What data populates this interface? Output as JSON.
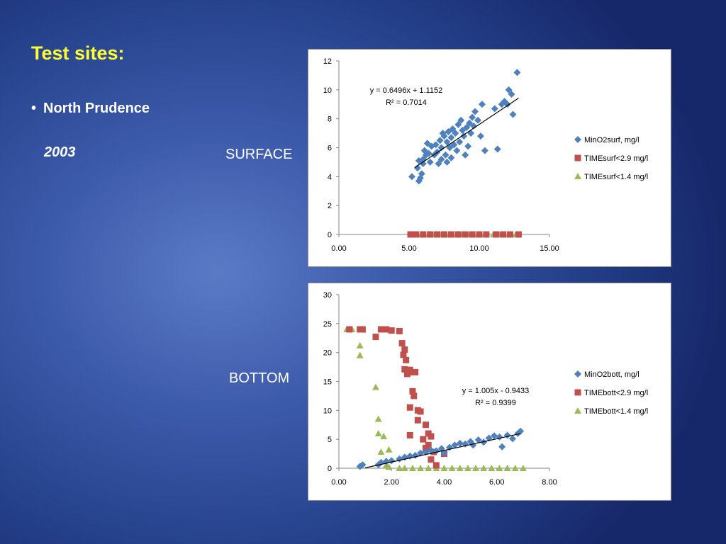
{
  "slide": {
    "title": "Test sites:",
    "bullet": "North Prudence",
    "year": "2003",
    "surface_label": "SURFACE",
    "bottom_label": "BOTTOM"
  },
  "chart_data": [
    {
      "type": "scatter",
      "title": "",
      "xlabel": "",
      "ylabel": "",
      "xlim": [
        0,
        15
      ],
      "ylim": [
        0,
        12
      ],
      "x_ticks": [
        "0.00",
        "5.00",
        "10.00",
        "15.00"
      ],
      "y_ticks": [
        "0",
        "2",
        "4",
        "6",
        "8",
        "10",
        "12"
      ],
      "grid": false,
      "legend": "right",
      "trendline": {
        "equation": "y = 0.6496x + 1.1152",
        "r2": "R² = 0.7014",
        "slope": 0.6496,
        "intercept": 1.1152,
        "x_range": [
          5.4,
          12.8
        ]
      },
      "series": [
        {
          "name": "MinO2surf, mg/l",
          "color": "#4f81bd",
          "marker": "diamond",
          "points": [
            [
              5.2,
              4.0
            ],
            [
              5.6,
              4.6
            ],
            [
              5.7,
              3.7
            ],
            [
              5.8,
              3.9
            ],
            [
              5.9,
              4.2
            ],
            [
              5.7,
              5.1
            ],
            [
              6.0,
              5.2
            ],
            [
              6.0,
              4.9
            ],
            [
              6.2,
              5.5
            ],
            [
              6.1,
              5.8
            ],
            [
              6.4,
              5.6
            ],
            [
              6.5,
              5.0
            ],
            [
              6.6,
              6.1
            ],
            [
              6.3,
              6.3
            ],
            [
              6.8,
              5.5
            ],
            [
              6.9,
              6.2
            ],
            [
              7.0,
              5.7
            ],
            [
              7.1,
              4.9
            ],
            [
              7.2,
              6.5
            ],
            [
              7.3,
              6.0
            ],
            [
              7.3,
              5.2
            ],
            [
              7.5,
              6.8
            ],
            [
              7.4,
              7.0
            ],
            [
              7.6,
              5.5
            ],
            [
              7.7,
              6.4
            ],
            [
              7.7,
              5.0
            ],
            [
              7.8,
              7.1
            ],
            [
              7.9,
              6.0
            ],
            [
              8.0,
              5.3
            ],
            [
              8.0,
              6.7
            ],
            [
              8.1,
              7.3
            ],
            [
              8.2,
              6.2
            ],
            [
              8.3,
              7.0
            ],
            [
              8.4,
              5.8
            ],
            [
              8.5,
              7.6
            ],
            [
              8.6,
              6.4
            ],
            [
              8.7,
              7.9
            ],
            [
              8.8,
              7.2
            ],
            [
              8.9,
              6.8
            ],
            [
              9.0,
              5.5
            ],
            [
              9.1,
              7.4
            ],
            [
              9.2,
              6.1
            ],
            [
              9.3,
              7.7
            ],
            [
              9.4,
              7.0
            ],
            [
              9.5,
              8.1
            ],
            [
              9.6,
              7.5
            ],
            [
              9.7,
              8.5
            ],
            [
              9.9,
              7.9
            ],
            [
              10.1,
              6.8
            ],
            [
              10.2,
              9.0
            ],
            [
              10.4,
              5.8
            ],
            [
              11.1,
              8.7
            ],
            [
              11.3,
              5.9
            ],
            [
              11.6,
              9.0
            ],
            [
              11.8,
              9.2
            ],
            [
              12.0,
              9.0
            ],
            [
              12.1,
              10.0
            ],
            [
              12.3,
              9.7
            ],
            [
              12.4,
              8.3
            ],
            [
              12.7,
              11.2
            ]
          ]
        },
        {
          "name": "TIMEsurf<2.9 mg/l",
          "color": "#c0504d",
          "marker": "square",
          "points": [
            [
              5.1,
              0
            ],
            [
              5.5,
              0
            ],
            [
              6.0,
              0
            ],
            [
              6.5,
              0
            ],
            [
              7.0,
              0
            ],
            [
              7.5,
              0
            ],
            [
              8.0,
              0
            ],
            [
              8.5,
              0
            ],
            [
              9.0,
              0
            ],
            [
              9.5,
              0
            ],
            [
              10.0,
              0
            ],
            [
              10.5,
              0
            ],
            [
              11.2,
              0
            ],
            [
              11.7,
              0
            ],
            [
              12.2,
              0
            ],
            [
              12.8,
              0
            ]
          ]
        },
        {
          "name": "TIMEsurf<1.4 mg/l",
          "color": "#9bbb59",
          "marker": "triangle",
          "points": [
            [
              5.2,
              0
            ],
            [
              5.6,
              0
            ],
            [
              6.0,
              0
            ],
            [
              6.4,
              0
            ],
            [
              6.8,
              0
            ],
            [
              7.2,
              0
            ],
            [
              7.6,
              0
            ],
            [
              8.0,
              0
            ],
            [
              8.4,
              0
            ],
            [
              8.8,
              0
            ],
            [
              9.2,
              0
            ],
            [
              9.6,
              0
            ],
            [
              10.0,
              0
            ],
            [
              10.4,
              0
            ],
            [
              11.0,
              0
            ],
            [
              11.4,
              0
            ],
            [
              11.8,
              0
            ],
            [
              12.2,
              0
            ],
            [
              12.6,
              0
            ]
          ]
        }
      ]
    },
    {
      "type": "scatter",
      "title": "",
      "xlabel": "",
      "ylabel": "",
      "xlim": [
        0,
        8
      ],
      "ylim": [
        0,
        30
      ],
      "x_ticks": [
        "0.00",
        "2.00",
        "4.00",
        "6.00",
        "8.00"
      ],
      "y_ticks": [
        "0",
        "5",
        "10",
        "15",
        "20",
        "25",
        "30"
      ],
      "grid": false,
      "legend": "right",
      "trendline": {
        "equation": "y = 1.005x - 0.9433",
        "r2": "R² = 0.9399",
        "slope": 1.005,
        "intercept": -0.9433,
        "x_range": [
          1.0,
          6.9
        ]
      },
      "series": [
        {
          "name": "MinO2bott, mg/l",
          "color": "#4f81bd",
          "marker": "diamond",
          "points": [
            [
              0.8,
              0.3
            ],
            [
              0.9,
              0.6
            ],
            [
              1.5,
              0.6
            ],
            [
              1.6,
              1.0
            ],
            [
              1.8,
              1.2
            ],
            [
              2.0,
              1.3
            ],
            [
              2.3,
              1.6
            ],
            [
              2.5,
              1.9
            ],
            [
              2.7,
              2.1
            ],
            [
              2.9,
              2.2
            ],
            [
              3.1,
              2.6
            ],
            [
              3.3,
              2.8
            ],
            [
              3.5,
              3.1
            ],
            [
              3.7,
              3.0
            ],
            [
              3.9,
              3.4
            ],
            [
              4.0,
              2.6
            ],
            [
              4.2,
              3.6
            ],
            [
              4.4,
              4.0
            ],
            [
              4.6,
              4.3
            ],
            [
              4.8,
              4.2
            ],
            [
              5.0,
              4.6
            ],
            [
              5.1,
              4.0
            ],
            [
              5.3,
              4.9
            ],
            [
              5.5,
              4.5
            ],
            [
              5.7,
              5.2
            ],
            [
              5.9,
              5.6
            ],
            [
              6.1,
              5.4
            ],
            [
              6.2,
              3.7
            ],
            [
              6.4,
              5.7
            ],
            [
              6.6,
              5.1
            ],
            [
              6.8,
              6.0
            ],
            [
              6.9,
              6.4
            ]
          ]
        },
        {
          "name": "TIMEbott<2.9 mg/l",
          "color": "#c0504d",
          "marker": "square",
          "points": [
            [
              0.4,
              24
            ],
            [
              0.8,
              24
            ],
            [
              0.9,
              24
            ],
            [
              1.4,
              22.7
            ],
            [
              1.6,
              24
            ],
            [
              1.8,
              24
            ],
            [
              2.0,
              23.8
            ],
            [
              2.3,
              23.7
            ],
            [
              2.4,
              21.6
            ],
            [
              2.5,
              20.5
            ],
            [
              2.45,
              19.6
            ],
            [
              2.55,
              18.7
            ],
            [
              2.5,
              17.1
            ],
            [
              2.6,
              16.3
            ],
            [
              2.7,
              17.0
            ],
            [
              2.75,
              16.6
            ],
            [
              2.9,
              16.6
            ],
            [
              2.8,
              13.3
            ],
            [
              2.85,
              12.5
            ],
            [
              2.7,
              10.5
            ],
            [
              3.0,
              10.0
            ],
            [
              3.1,
              9.8
            ],
            [
              3.0,
              8.3
            ],
            [
              3.3,
              7.5
            ],
            [
              2.7,
              5.7
            ],
            [
              3.4,
              6.0
            ],
            [
              3.2,
              5.0
            ],
            [
              3.5,
              5.5
            ],
            [
              3.4,
              4.0
            ],
            [
              3.3,
              3.5
            ],
            [
              3.6,
              2.8
            ],
            [
              3.5,
              1.5
            ],
            [
              4.0,
              2.5
            ],
            [
              3.7,
              0.5
            ]
          ]
        },
        {
          "name": "TIMEbott<1.4 mg/l",
          "color": "#9bbb59",
          "marker": "triangle",
          "points": [
            [
              0.3,
              24
            ],
            [
              0.5,
              24
            ],
            [
              0.9,
              24
            ],
            [
              0.8,
              21.2
            ],
            [
              0.8,
              19.5
            ],
            [
              1.4,
              14.0
            ],
            [
              1.5,
              8.5
            ],
            [
              1.5,
              6.0
            ],
            [
              1.7,
              5.5
            ],
            [
              1.6,
              2.8
            ],
            [
              1.9,
              3.2
            ],
            [
              1.8,
              0.5
            ],
            [
              1.9,
              0.2
            ],
            [
              2.3,
              0
            ],
            [
              2.5,
              0
            ],
            [
              2.8,
              0
            ],
            [
              3.1,
              0
            ],
            [
              3.4,
              0
            ],
            [
              3.7,
              0
            ],
            [
              4.0,
              0
            ],
            [
              4.3,
              0
            ],
            [
              4.6,
              0
            ],
            [
              4.9,
              0
            ],
            [
              5.2,
              0
            ],
            [
              5.5,
              0
            ],
            [
              5.8,
              0
            ],
            [
              6.1,
              0
            ],
            [
              6.4,
              0
            ],
            [
              6.7,
              0
            ],
            [
              7.0,
              0
            ]
          ]
        }
      ]
    }
  ]
}
